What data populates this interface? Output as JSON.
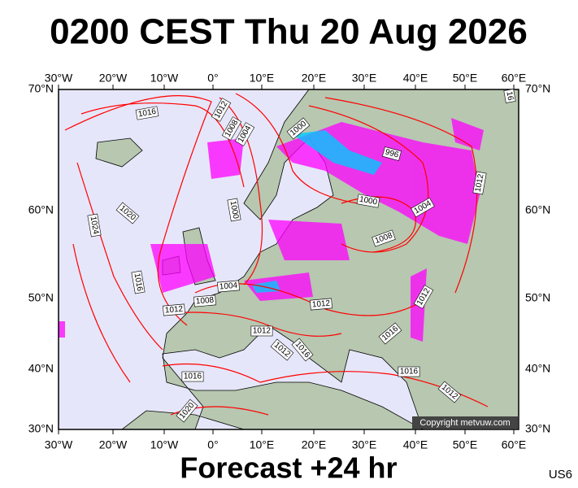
{
  "title": "0200 CEST Thu 20 Aug 2026",
  "longitude_labels": [
    "30°W",
    "20°W",
    "10°W",
    "0°",
    "10°E",
    "20°E",
    "30°E",
    "40°E",
    "50°E",
    "60°E"
  ],
  "latitude_labels": [
    "70°N",
    "60°N",
    "50°N",
    "40°N",
    "30°N"
  ],
  "isobar_labels": [
    "1016",
    "1012",
    "1008",
    "1004",
    "1000",
    "996",
    "1000",
    "1004",
    "1008",
    "1012",
    "1020",
    "1024",
    "1000",
    "1016",
    "1004",
    "1008",
    "1012",
    "1012",
    "1012",
    "1016",
    "1012",
    "1012",
    "1016",
    "1016",
    "1016",
    "1012",
    "1020",
    "16"
  ],
  "copyright": "Copyright metvuw.com",
  "footer": "Forecast +24 hr",
  "model": "US6"
}
